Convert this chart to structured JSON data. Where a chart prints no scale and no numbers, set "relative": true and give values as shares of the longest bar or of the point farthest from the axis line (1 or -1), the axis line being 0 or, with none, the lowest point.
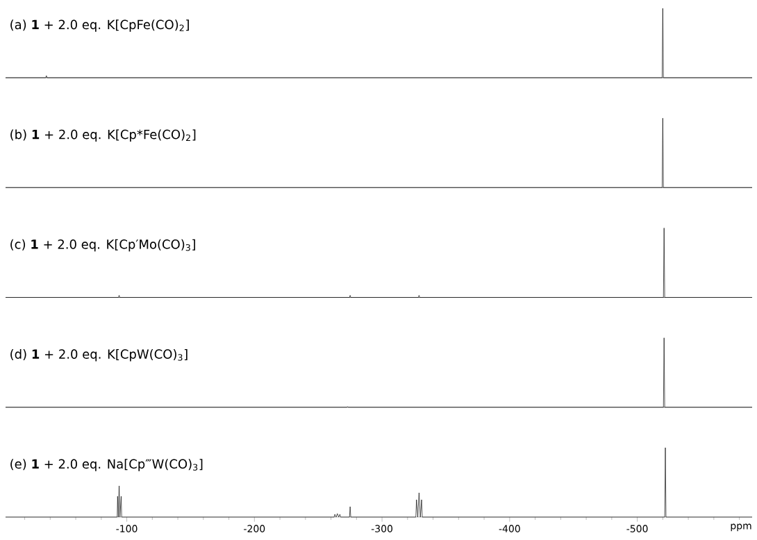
{
  "chart_data": [
    {
      "type": "line",
      "title": "(a) **1** + 2.0 eq. K[CpFe(CO)$_{2}$]",
      "relative": true,
      "color": "#000000",
      "tick_labels": false,
      "xlim": [
        -5,
        -590
      ],
      "x": [
        -5,
        -36.5,
        -37,
        -37.5,
        -519.5,
        -520,
        -520.5,
        -590
      ],
      "values": [
        0,
        0,
        0.03,
        0,
        0,
        1,
        0,
        0
      ]
    },
    {
      "type": "line",
      "title": "(b) **1** + 2.0 eq. K[Cp*Fe(CO)$_{2}$]",
      "relative": true,
      "color": "#000000",
      "tick_labels": false,
      "xlim": [
        -5,
        -590
      ],
      "x": [
        -5,
        -519.5,
        -520,
        -520.5,
        -590
      ],
      "values": [
        0,
        0,
        1,
        0,
        0
      ]
    },
    {
      "type": "line",
      "title": "(c) **1** + 2.0 eq. K[Cp′Mo(CO)$_{3}$]",
      "relative": true,
      "color": "#000000",
      "tick_labels": false,
      "xlim": [
        -5,
        -590
      ],
      "x": [
        -5,
        -93.5,
        -94,
        -94.5,
        -274.5,
        -275,
        -275.5,
        -328.5,
        -329,
        -329.5,
        -520.5,
        -521,
        -521.5,
        -590
      ],
      "values": [
        0,
        0,
        0.03,
        0,
        0,
        0.03,
        0,
        0,
        0.03,
        0,
        0,
        1,
        0,
        0
      ]
    },
    {
      "type": "line",
      "title": "(d) **1** + 2.0 eq. K[CpW(CO)$_{3}$]",
      "relative": true,
      "color": "#000000",
      "tick_labels": false,
      "xlim": [
        -5,
        -590
      ],
      "x": [
        -5,
        -272.5,
        -273,
        -273.5,
        -520.5,
        -521,
        -521.5,
        -590
      ],
      "values": [
        0,
        0,
        0.01,
        0,
        0,
        1,
        0,
        0
      ]
    },
    {
      "type": "line",
      "title": "(e) **1** + 2.0 eq. Na[Cp‴W(CO)$_{3}$]",
      "relative": true,
      "color": "#000000",
      "tick_labels": "x",
      "xlim": [
        -5,
        -590
      ],
      "xlabel": "ppm",
      "x": [
        -5,
        -92.5,
        -92.8,
        -93.4,
        -94,
        -94.6,
        -95.6,
        -96,
        -262.5,
        -263,
        -264,
        -265,
        -266,
        -267,
        -267.5,
        -274.5,
        -275,
        -275.5,
        -326.5,
        -327,
        -328,
        -329,
        -330,
        -331,
        -331.5,
        -521.5,
        -522,
        -522.5,
        -590
      ],
      "values": [
        0,
        0,
        0.3,
        0,
        0.45,
        0,
        0.3,
        0,
        0,
        0.04,
        0,
        0.05,
        0,
        0.04,
        0,
        0,
        0.15,
        0,
        0,
        0.25,
        0,
        0.35,
        0,
        0.25,
        0,
        0,
        1,
        0,
        0
      ],
      "xticks": [
        {
          "value": -20,
          "label": null
        },
        {
          "value": -40,
          "label": null
        },
        {
          "value": -60,
          "label": null
        },
        {
          "value": -80,
          "label": null
        },
        -100,
        {
          "value": -120,
          "label": null
        },
        {
          "value": -140,
          "label": null
        },
        {
          "value": -160,
          "label": null
        },
        {
          "value": -180,
          "label": null
        },
        -200,
        {
          "value": -220,
          "label": null
        },
        {
          "value": -240,
          "label": null
        },
        {
          "value": -260,
          "label": null
        },
        {
          "value": -280,
          "label": null
        },
        -300,
        {
          "value": -320,
          "label": null
        },
        {
          "value": -340,
          "label": null
        },
        {
          "value": -360,
          "label": null
        },
        {
          "value": -380,
          "label": null
        },
        -400,
        {
          "value": -420,
          "label": null
        },
        {
          "value": -440,
          "label": null
        },
        {
          "value": -460,
          "label": null
        },
        {
          "value": -480,
          "label": null
        },
        -500,
        {
          "value": -520,
          "label": null
        },
        {
          "value": -540,
          "label": null
        },
        {
          "value": -560,
          "label": null
        },
        {
          "value": -580,
          "label": null
        }
      ]
    }
  ]
}
